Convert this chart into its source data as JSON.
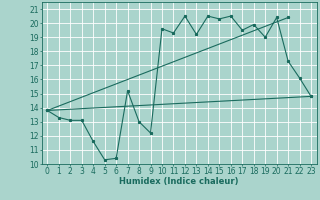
{
  "xlabel": "Humidex (Indice chaleur)",
  "bg_color": "#aad4cc",
  "grid_color": "#ffffff",
  "line_color": "#1a6b5e",
  "xlim": [
    -0.5,
    23.5
  ],
  "ylim": [
    10,
    21.5
  ],
  "yticks": [
    10,
    11,
    12,
    13,
    14,
    15,
    16,
    17,
    18,
    19,
    20,
    21
  ],
  "xticks": [
    0,
    1,
    2,
    3,
    4,
    5,
    6,
    7,
    8,
    9,
    10,
    11,
    12,
    13,
    14,
    15,
    16,
    17,
    18,
    19,
    20,
    21,
    22,
    23
  ],
  "line1_x": [
    0,
    1,
    2,
    3,
    4,
    5,
    6,
    7,
    8,
    9,
    10,
    11,
    12,
    13,
    14,
    15,
    16,
    17,
    18,
    19,
    20,
    21,
    22,
    23
  ],
  "line1_y": [
    13.8,
    13.3,
    13.1,
    13.1,
    11.6,
    10.3,
    10.4,
    15.2,
    13.0,
    12.2,
    19.6,
    19.3,
    20.5,
    19.2,
    20.5,
    20.3,
    20.5,
    19.5,
    19.9,
    19.0,
    20.4,
    17.3,
    16.1,
    14.8
  ],
  "line2_x": [
    0,
    23
  ],
  "line2_y": [
    13.8,
    14.8
  ],
  "line3_x": [
    0,
    21
  ],
  "line3_y": [
    13.8,
    20.4
  ],
  "tick_fontsize": 5.5,
  "xlabel_fontsize": 6,
  "lw": 0.8,
  "ms": 2.0
}
